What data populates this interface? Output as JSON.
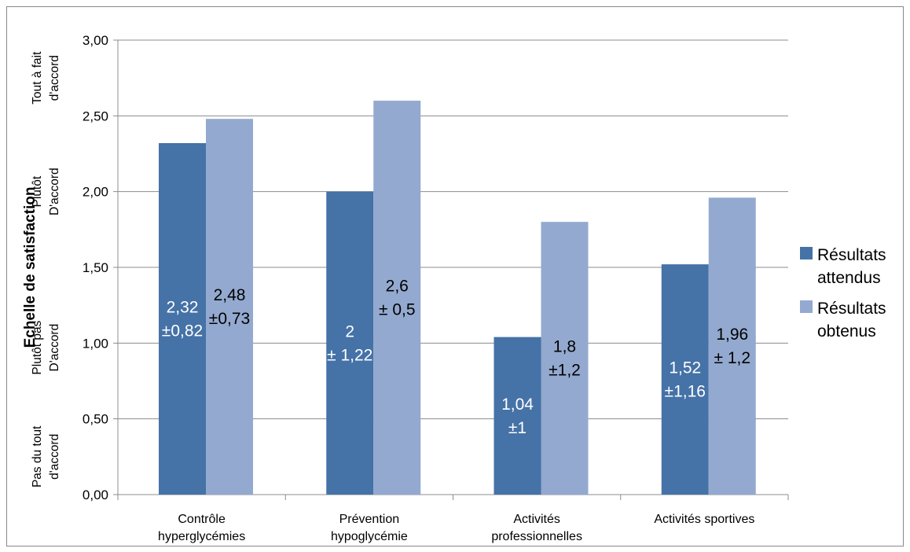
{
  "chart_data": {
    "type": "bar",
    "ylabel": "Echelle de satisfaction",
    "ylim": [
      0,
      3
    ],
    "yticks": [
      "0,00",
      "0,50",
      "1,00",
      "1,50",
      "2,00",
      "2,50",
      "3,00"
    ],
    "scale_bands": [
      {
        "lines": [
          "Pas du tout",
          "d'accord"
        ],
        "value": 0.25
      },
      {
        "lines": [
          "Plutôt pas",
          "D'accord"
        ],
        "value": 0.97
      },
      {
        "lines": [
          "Plutôt",
          "D'accord"
        ],
        "value": 2.0
      },
      {
        "lines": [
          "Tout à fait",
          "d'accord"
        ],
        "value": 2.75
      }
    ],
    "categories": [
      [
        "Contrôle",
        "hyperglycémies"
      ],
      [
        "Prévention",
        "hypoglycémie"
      ],
      [
        "Activités",
        "professionnelles"
      ],
      [
        "Activités sportives"
      ]
    ],
    "series": [
      {
        "name": [
          "Résultats",
          "attendus"
        ],
        "color": "#4572a7",
        "label_color": "#ffffff",
        "values": [
          2.32,
          2.0,
          1.04,
          1.52
        ],
        "labels": [
          [
            "2,32",
            "±0,82"
          ],
          [
            "2",
            "± 1,22"
          ],
          [
            "1,04",
            "±1"
          ],
          [
            "1,52",
            "±1,16"
          ]
        ]
      },
      {
        "name": [
          "Résultats",
          "obtenus"
        ],
        "color": "#93a9cf",
        "label_color": "#000000",
        "values": [
          2.48,
          2.6,
          1.8,
          1.96
        ],
        "labels": [
          [
            "2,48",
            "±0,73"
          ],
          [
            "2,6",
            "± 0,5"
          ],
          [
            "1,8",
            "±1,2"
          ],
          [
            "1,96",
            "± 1,2"
          ]
        ]
      }
    ],
    "grid": true,
    "legend": "right"
  }
}
